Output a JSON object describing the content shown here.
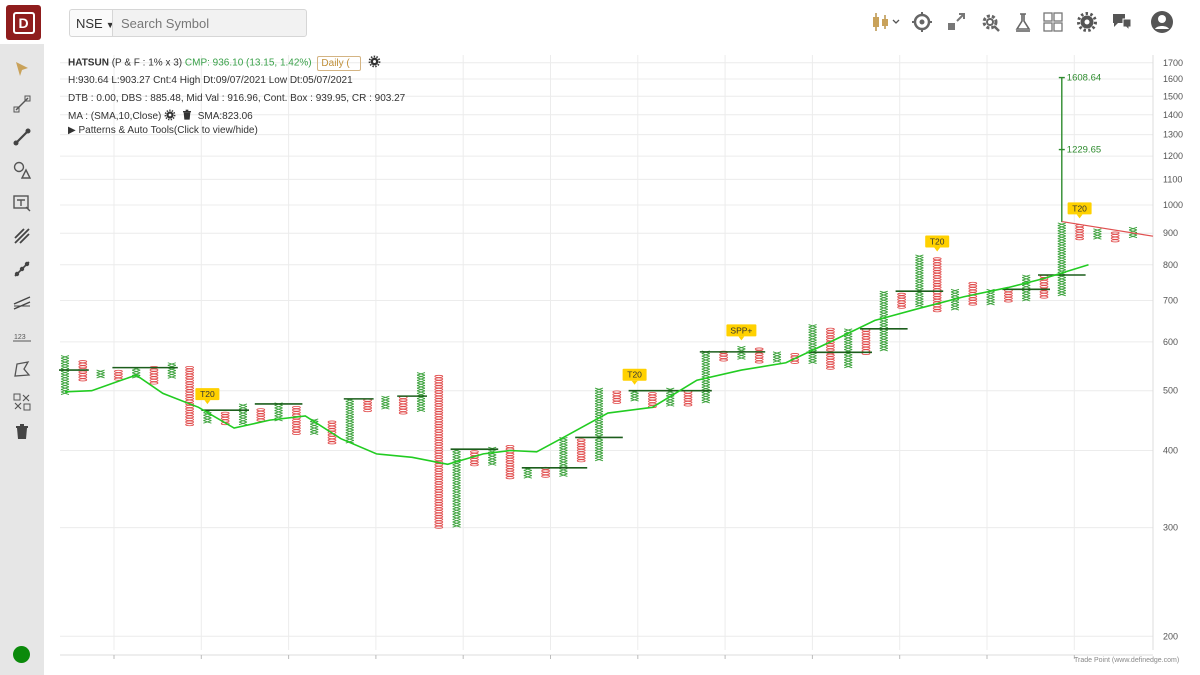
{
  "topbar": {
    "exchange": "NSE",
    "search_placeholder": "Search Symbol",
    "icons": [
      "candlestick-icon",
      "compass-icon",
      "expand-icon",
      "settings-gear-icon",
      "science-icon",
      "layout-grid-icon",
      "gear-icon",
      "chat-help-icon",
      "user-avatar-icon"
    ]
  },
  "left_toolbar": {
    "tools": [
      "cursor-tool",
      "rectangle-tool",
      "trendline-tool",
      "shapes-tool",
      "text-tool",
      "pitchfork-tool",
      "ray-tool",
      "parallel-lines-tool",
      "counter-tool",
      "polygon-tool",
      "delete-tools",
      "trash"
    ]
  },
  "info": {
    "symbol": "HATSUN",
    "params": "(P & F : 1% x 3)",
    "cmp": "CMP: 936.10 (13.15, 1.42%)",
    "interval": "Daily (",
    "line2": "H:930.64 L:903.27 Cnt:4 High Dt:09/07/2021 Low Dt:05/07/2021",
    "line3": "DTB : 0.00, DBS : 885.48, Mid Val : 916.96, Cont. Box : 939.95, CR : 903.27",
    "ma_label": "MA : (SMA,10,Close)",
    "sma_value": "SMA:823.06",
    "patterns": "Patterns & Auto Tools(Click to view/hide)"
  },
  "watermark": "Trade Point (www.definedge.com)",
  "colors": {
    "x_col": "#3aa13a",
    "o_col": "#e04848",
    "sma": "#22cc22",
    "trend_red": "#e05050",
    "target": "#2e8b2e",
    "badge": "#ffd100"
  },
  "chart_data": {
    "type": "point-and-figure",
    "scale": "log",
    "y_range": [
      190,
      1750
    ],
    "y_ticks": [
      1700,
      1600,
      1500,
      1400,
      1300,
      1200,
      1100,
      1000,
      900,
      800,
      700,
      600,
      500,
      400,
      300,
      200
    ],
    "columns": [
      {
        "t": "X",
        "lo": 496,
        "hi": 570
      },
      {
        "t": "O",
        "lo": 523,
        "hi": 560
      },
      {
        "t": "X",
        "lo": 525,
        "hi": 540
      },
      {
        "t": "O",
        "lo": 520,
        "hi": 540
      },
      {
        "t": "X",
        "lo": 527,
        "hi": 545
      },
      {
        "t": "O",
        "lo": 515,
        "hi": 548
      },
      {
        "t": "X",
        "lo": 527,
        "hi": 555
      },
      {
        "t": "O",
        "lo": 441,
        "hi": 548
      },
      {
        "t": "X",
        "lo": 445,
        "hi": 465
      },
      {
        "t": "O",
        "lo": 442,
        "hi": 462
      },
      {
        "t": "X",
        "lo": 444,
        "hi": 476
      },
      {
        "t": "O",
        "lo": 450,
        "hi": 468
      },
      {
        "t": "X",
        "lo": 450,
        "hi": 478
      },
      {
        "t": "O",
        "lo": 425,
        "hi": 472
      },
      {
        "t": "X",
        "lo": 428,
        "hi": 450
      },
      {
        "t": "O",
        "lo": 410,
        "hi": 447
      },
      {
        "t": "X",
        "lo": 412,
        "hi": 485
      },
      {
        "t": "O",
        "lo": 465,
        "hi": 485
      },
      {
        "t": "X",
        "lo": 470,
        "hi": 490
      },
      {
        "t": "O",
        "lo": 460,
        "hi": 490
      },
      {
        "t": "X",
        "lo": 465,
        "hi": 535
      },
      {
        "t": "O",
        "lo": 300,
        "hi": 530
      },
      {
        "t": "X",
        "lo": 302,
        "hi": 402
      },
      {
        "t": "O",
        "lo": 378,
        "hi": 400
      },
      {
        "t": "X",
        "lo": 380,
        "hi": 405
      },
      {
        "t": "O",
        "lo": 362,
        "hi": 408
      },
      {
        "t": "X",
        "lo": 364,
        "hi": 375
      },
      {
        "t": "O",
        "lo": 362,
        "hi": 376
      },
      {
        "t": "X",
        "lo": 364,
        "hi": 420
      },
      {
        "t": "O",
        "lo": 385,
        "hi": 418
      },
      {
        "t": "X",
        "lo": 387,
        "hi": 505
      },
      {
        "t": "O",
        "lo": 478,
        "hi": 500
      },
      {
        "t": "X",
        "lo": 482,
        "hi": 500
      },
      {
        "t": "O",
        "lo": 470,
        "hi": 497
      },
      {
        "t": "X",
        "lo": 472,
        "hi": 505
      },
      {
        "t": "O",
        "lo": 475,
        "hi": 500
      },
      {
        "t": "X",
        "lo": 478,
        "hi": 580
      },
      {
        "t": "O",
        "lo": 562,
        "hi": 580
      },
      {
        "t": "X",
        "lo": 566,
        "hi": 590
      },
      {
        "t": "O",
        "lo": 555,
        "hi": 587
      },
      {
        "t": "X",
        "lo": 558,
        "hi": 578
      },
      {
        "t": "O",
        "lo": 555,
        "hi": 575
      },
      {
        "t": "X",
        "lo": 556,
        "hi": 640
      },
      {
        "t": "O",
        "lo": 545,
        "hi": 632
      },
      {
        "t": "X",
        "lo": 546,
        "hi": 630
      },
      {
        "t": "O",
        "lo": 575,
        "hi": 630
      },
      {
        "t": "X",
        "lo": 580,
        "hi": 725
      },
      {
        "t": "O",
        "lo": 680,
        "hi": 720
      },
      {
        "t": "X",
        "lo": 688,
        "hi": 830
      },
      {
        "t": "O",
        "lo": 676,
        "hi": 822
      },
      {
        "t": "X",
        "lo": 680,
        "hi": 730
      },
      {
        "t": "O",
        "lo": 690,
        "hi": 750
      },
      {
        "t": "X",
        "lo": 695,
        "hi": 730
      },
      {
        "t": "O",
        "lo": 700,
        "hi": 730
      },
      {
        "t": "X",
        "lo": 700,
        "hi": 770
      },
      {
        "t": "O",
        "lo": 710,
        "hi": 770
      },
      {
        "t": "X",
        "lo": 714,
        "hi": 935
      },
      {
        "t": "O",
        "lo": 885,
        "hi": 930
      },
      {
        "t": "X",
        "lo": 888,
        "hi": 915
      },
      {
        "t": "O",
        "lo": 875,
        "hi": 905
      },
      {
        "t": "X",
        "lo": 885,
        "hi": 920
      }
    ],
    "sma": [
      [
        0,
        498
      ],
      [
        3,
        500
      ],
      [
        6,
        518
      ],
      [
        8,
        530
      ],
      [
        11,
        495
      ],
      [
        15,
        470
      ],
      [
        19,
        435
      ],
      [
        23,
        448
      ],
      [
        27,
        455
      ],
      [
        31,
        418
      ],
      [
        35,
        395
      ],
      [
        39,
        390
      ],
      [
        43,
        380
      ],
      [
        47,
        395
      ],
      [
        50,
        400
      ],
      [
        53,
        398
      ],
      [
        56,
        420
      ],
      [
        61,
        460
      ],
      [
        66,
        470
      ],
      [
        71,
        520
      ],
      [
        76,
        540
      ],
      [
        81,
        555
      ],
      [
        86,
        600
      ],
      [
        91,
        650
      ],
      [
        96,
        680
      ],
      [
        101,
        710
      ],
      [
        106,
        735
      ],
      [
        110,
        760
      ],
      [
        115,
        800
      ]
    ],
    "trendline": [
      [
        102,
        940
      ],
      [
        125,
        890
      ]
    ],
    "targets": [
      {
        "value": "1608.64",
        "lo": 938,
        "hi": 1608
      },
      {
        "value": "1229.65",
        "lo": 0,
        "hi": 1229
      }
    ],
    "annotations": [
      {
        "label": "T20",
        "col": 8
      },
      {
        "label": "T20",
        "col": 32
      },
      {
        "label": "SPP+",
        "col": 38
      },
      {
        "label": "T20",
        "col": 49
      },
      {
        "label": "T20",
        "col": 57
      }
    ]
  }
}
